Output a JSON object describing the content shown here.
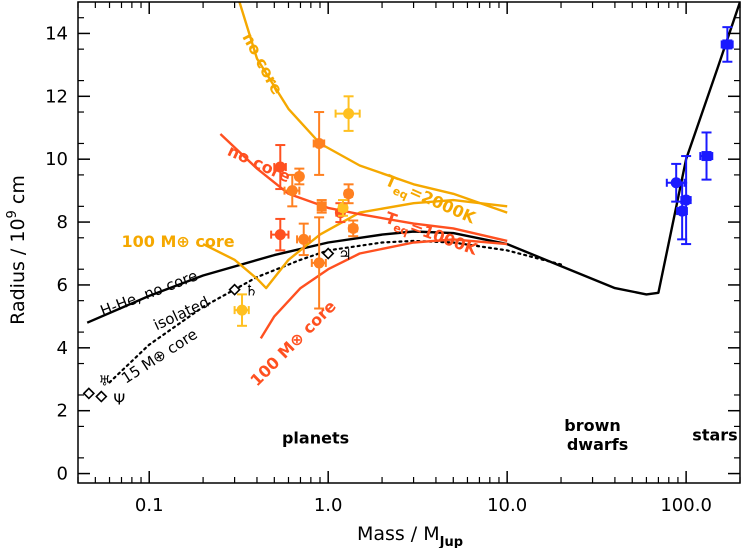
{
  "chart_data": {
    "type": "scatter",
    "xlabel": "Mass / M",
    "xlabel_sub": "Jup",
    "ylabel": "Radius / 10",
    "ylabel_sup": "9",
    "ylabel_unit": " cm",
    "xscale": "log",
    "xlim": [
      0.04,
      200
    ],
    "ylim": [
      -0.3,
      15
    ],
    "x_ticks": [
      {
        "value": 0.1,
        "label": "0.1"
      },
      {
        "value": 1,
        "label": "1.0"
      },
      {
        "value": 10,
        "label": "10.0"
      },
      {
        "value": 100,
        "label": "100.0"
      }
    ],
    "y_ticks": [
      {
        "value": 0,
        "label": "0"
      },
      {
        "value": 2,
        "label": "2"
      },
      {
        "value": 4,
        "label": "4"
      },
      {
        "value": 6,
        "label": "6"
      },
      {
        "value": 8,
        "label": "8"
      },
      {
        "value": 10,
        "label": "10"
      },
      {
        "value": 12,
        "label": "12"
      },
      {
        "value": 14,
        "label": "14"
      }
    ],
    "colors": {
      "yellow": "#ffc020",
      "orange": "#ff8020",
      "red": "#ff5020",
      "blue": "#1a1aff",
      "black": "#000000",
      "gold_line": "#f5a800"
    },
    "curves": [
      {
        "name": "h-he-no-core",
        "color": "#000000",
        "style": "solid",
        "x": [
          0.045,
          0.1,
          0.2,
          0.5,
          1,
          2,
          3,
          5,
          10,
          20,
          40,
          60,
          70,
          100,
          150,
          200
        ],
        "y": [
          4.8,
          5.65,
          6.3,
          6.95,
          7.35,
          7.6,
          7.7,
          7.65,
          7.3,
          6.6,
          5.9,
          5.7,
          5.75,
          10.0,
          12.9,
          15.0
        ]
      },
      {
        "name": "isolated-15-earth-core",
        "color": "#000000",
        "style": "dotted",
        "x": [
          0.06,
          0.1,
          0.2,
          0.4,
          0.7,
          1,
          2,
          3,
          5,
          10,
          20
        ],
        "y": [
          2.9,
          4.1,
          5.3,
          6.25,
          6.8,
          7.1,
          7.35,
          7.4,
          7.35,
          7.1,
          6.65
        ]
      },
      {
        "name": "no-core-2000k",
        "color": "#f5a800",
        "style": "solid",
        "x": [
          0.3,
          0.4,
          0.6,
          0.9,
          1.5,
          3,
          5,
          10
        ],
        "y": [
          15.5,
          13.2,
          11.6,
          10.5,
          9.8,
          9.2,
          8.9,
          8.3
        ]
      },
      {
        "name": "100-earth-core-2000k",
        "color": "#f5a800",
        "style": "solid",
        "x": [
          0.2,
          0.3,
          0.4,
          0.45,
          0.6,
          0.9,
          1.5,
          3,
          5,
          10
        ],
        "y": [
          7.3,
          6.8,
          6.2,
          5.9,
          6.8,
          7.6,
          8.3,
          8.6,
          8.7,
          8.5
        ]
      },
      {
        "name": "no-core-1000k",
        "color": "#ff5020",
        "style": "solid",
        "x": [
          0.25,
          0.4,
          0.6,
          1,
          1.5,
          3,
          5,
          10
        ],
        "y": [
          10.8,
          9.7,
          8.9,
          8.45,
          8.25,
          7.95,
          7.8,
          7.4
        ]
      },
      {
        "name": "100-earth-core-1000k",
        "color": "#ff5020",
        "style": "solid",
        "x": [
          0.42,
          0.5,
          0.7,
          1,
          1.5,
          3,
          5,
          10
        ],
        "y": [
          4.3,
          5.0,
          5.9,
          6.5,
          7.0,
          7.35,
          7.45,
          7.3
        ]
      }
    ],
    "planets": [
      {
        "x": 0.33,
        "y": 5.2,
        "xerr": [
          0.03,
          0.03
        ],
        "yerr": [
          0.5,
          0.5
        ],
        "color": "#ffc020",
        "marker": "circle"
      },
      {
        "x": 0.54,
        "y": 7.6,
        "xerr": [
          0.06,
          0.06
        ],
        "yerr": [
          0.5,
          0.5
        ],
        "color": "#ff5020",
        "marker": "circle"
      },
      {
        "x": 0.54,
        "y": 9.75,
        "xerr": [
          0.04,
          0.04
        ],
        "yerr": [
          0.7,
          0.7
        ],
        "color": "#ff5020",
        "marker": "circle"
      },
      {
        "x": 0.63,
        "y": 9.0,
        "xerr": [
          0.06,
          0.06
        ],
        "yerr": [
          0.5,
          0.5
        ],
        "color": "#ff8020",
        "marker": "circle"
      },
      {
        "x": 0.69,
        "y": 9.45,
        "xerr": [
          0.03,
          0.03
        ],
        "yerr": [
          0.25,
          0.25
        ],
        "color": "#ff8020",
        "marker": "circle"
      },
      {
        "x": 0.73,
        "y": 7.45,
        "xerr": [
          0.06,
          0.06
        ],
        "yerr": [
          0.5,
          0.5
        ],
        "color": "#ff8020",
        "marker": "circle"
      },
      {
        "x": 0.89,
        "y": 10.5,
        "xerr": [
          0.06,
          0.06
        ],
        "yerr": [
          1.0,
          1.0
        ],
        "color": "#ff8020",
        "marker": "circle"
      },
      {
        "x": 0.89,
        "y": 6.7,
        "xerr": [
          0.08,
          0.08
        ],
        "yerr": [
          1.45,
          1.45
        ],
        "color": "#ff8020",
        "marker": "circle"
      },
      {
        "x": 0.92,
        "y": 8.5,
        "xerr": [
          0.04,
          0.04
        ],
        "yerr": [
          0.2,
          0.2
        ],
        "color": "#ff8020",
        "marker": "square"
      },
      {
        "x": 1.17,
        "y": 8.3,
        "xerr": [
          0.06,
          0.06
        ],
        "yerr": [
          0.3,
          0.3
        ],
        "color": "#ff5020",
        "marker": "circle"
      },
      {
        "x": 1.21,
        "y": 8.45,
        "xerr": [
          0.06,
          0.06
        ],
        "yerr": [
          0.25,
          0.25
        ],
        "color": "#ffc020",
        "marker": "circle"
      },
      {
        "x": 1.3,
        "y": 8.9,
        "xerr": [
          0.06,
          0.06
        ],
        "yerr": [
          0.3,
          0.3
        ],
        "color": "#ff8020",
        "marker": "circle"
      },
      {
        "x": 1.38,
        "y": 7.8,
        "xerr": [
          0.07,
          0.07
        ],
        "yerr": [
          0.25,
          0.25
        ],
        "color": "#ff8020",
        "marker": "circle"
      },
      {
        "x": 1.3,
        "y": 11.45,
        "xerr": [
          0.2,
          0.2
        ],
        "yerr": [
          0.55,
          0.55
        ],
        "color": "#ffc020",
        "marker": "circle"
      }
    ],
    "stars": [
      {
        "x": 88,
        "y": 9.25,
        "xerr": [
          10,
          10
        ],
        "yerr": [
          0.6,
          0.6
        ],
        "color": "#1a1aff",
        "marker": "circle"
      },
      {
        "x": 95,
        "y": 8.35,
        "xerr": [
          6,
          6
        ],
        "yerr": [
          0.9,
          0.9
        ],
        "color": "#1a1aff",
        "marker": "circle"
      },
      {
        "x": 100,
        "y": 8.7,
        "xerr": [
          6,
          6
        ],
        "yerr": [
          1.4,
          1.4
        ],
        "color": "#1a1aff",
        "marker": "circle"
      },
      {
        "x": 130,
        "y": 10.1,
        "xerr": [
          10,
          10
        ],
        "yerr": [
          0.75,
          0.75
        ],
        "color": "#1a1aff",
        "marker": "square"
      },
      {
        "x": 170,
        "y": 13.65,
        "xerr": [
          12,
          12
        ],
        "yerr": [
          0.55,
          0.55
        ],
        "color": "#1a1aff",
        "marker": "square"
      }
    ],
    "solar_system": [
      {
        "x": 0.046,
        "y": 2.55,
        "symbol": "",
        "label_dx": 0,
        "label_dy": 0
      },
      {
        "x": 0.054,
        "y": 2.45,
        "symbol": "Ψ",
        "label_dx": 12,
        "label_dy": 8
      },
      {
        "x": 0.3,
        "y": 5.85,
        "symbol": "♄",
        "label_dx": 10,
        "label_dy": 6
      },
      {
        "x": 1.0,
        "y": 7.0,
        "symbol": "♃",
        "label_dx": 10,
        "label_dy": 6
      }
    ],
    "uranus_symbol": "♅",
    "annotations": [
      {
        "key": "no_core_gold",
        "text": "no core",
        "color": "#f5a800",
        "class": "ann-bold",
        "x": 0.33,
        "y": 13.9,
        "rotate": 62
      },
      {
        "key": "no_core_red",
        "text": "no core",
        "color": "#ff5020",
        "class": "ann-bold",
        "x": 0.27,
        "y": 10.15,
        "rotate": 25
      },
      {
        "key": "teq_2000",
        "text": "T",
        "sub": "eq",
        "tail": "=2000K",
        "color": "#f5a800",
        "class": "ann-bold",
        "x": 2.05,
        "y": 9.2,
        "rotate": 24
      },
      {
        "key": "teq_1000",
        "text": "T",
        "sub": "eq",
        "tail": "=1000K",
        "color": "#ff5020",
        "class": "ann-bold",
        "x": 2.05,
        "y": 8.0,
        "rotate": 20
      },
      {
        "key": "core_100_gold",
        "text": "100 M⊕ core",
        "color": "#f5a800",
        "class": "ann-bold",
        "x": 0.07,
        "y": 7.2,
        "rotate": 0
      },
      {
        "key": "core_100_red",
        "text": "100 M⊗ core",
        "color": "#ff5020",
        "class": "ann-bold",
        "x": 0.4,
        "y": 2.75,
        "rotate": -45
      },
      {
        "key": "h_he",
        "text": "H-He, no core",
        "color": "#000000",
        "class": "ann",
        "x": 0.055,
        "y": 5.0,
        "rotate": -21
      },
      {
        "key": "isolated",
        "text": "isolated",
        "color": "#000000",
        "class": "ann",
        "x": 0.11,
        "y": 4.55,
        "rotate": -25
      },
      {
        "key": "core_15",
        "text": "15 M⊕ core",
        "color": "#000000",
        "class": "ann",
        "x": 0.074,
        "y": 2.85,
        "rotate": -33
      },
      {
        "key": "planets",
        "text": "planets",
        "color": "#000000",
        "class": "ann-bold",
        "x": 0.85,
        "y": 0.95,
        "rotate": 0,
        "anchor": "middle"
      },
      {
        "key": "brown",
        "text": "brown",
        "color": "#000000",
        "class": "ann-bold",
        "x": 30,
        "y": 1.35,
        "rotate": 0,
        "anchor": "middle"
      },
      {
        "key": "dwarfs",
        "text": "dwarfs",
        "color": "#000000",
        "class": "ann-bold",
        "x": 32,
        "y": 0.75,
        "rotate": 0,
        "anchor": "middle"
      },
      {
        "key": "stars",
        "text": "stars",
        "color": "#000000",
        "class": "ann-bold",
        "x": 145,
        "y": 1.05,
        "rotate": 0,
        "anchor": "middle"
      }
    ]
  }
}
